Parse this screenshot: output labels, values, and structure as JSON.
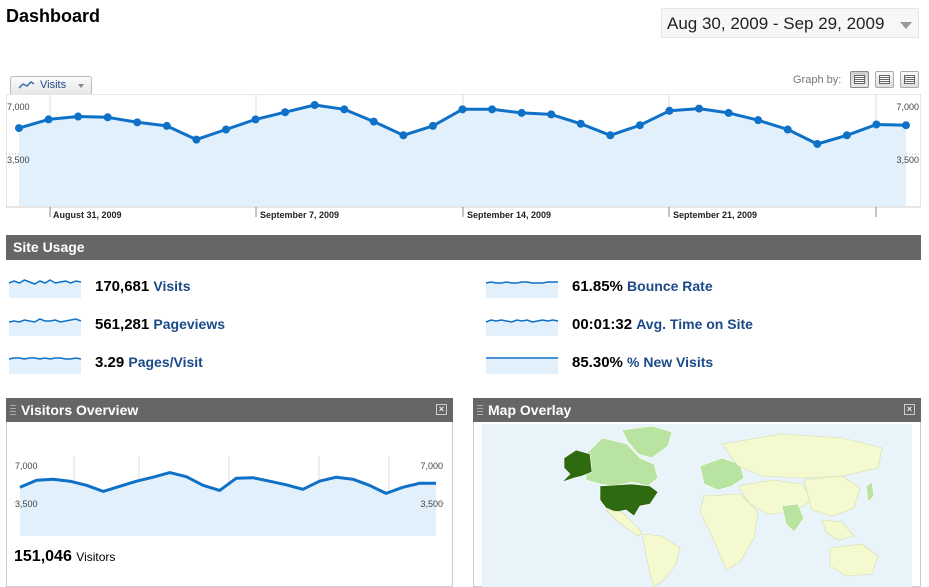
{
  "page": {
    "title": "Dashboard",
    "date_range": "Aug 30, 2009 - Sep 29, 2009"
  },
  "main_graph": {
    "metric_selector": "Visits",
    "graph_by_label": "Graph by:",
    "graph_by_options": [
      "day-icon",
      "week-icon",
      "month-icon"
    ],
    "y_top_label": "7,000",
    "y_mid_label": "3,500",
    "x_labels": [
      "August 31, 2009",
      "September 7, 2009",
      "September 14, 2009",
      "September 21, 2009"
    ],
    "line_color": "#0e71c7",
    "fill_color": "#e2f0fb"
  },
  "chart_data": [
    {
      "type": "area",
      "title": "",
      "x": [
        "2009-08-30",
        "2009-08-31",
        "2009-09-01",
        "2009-09-02",
        "2009-09-03",
        "2009-09-04",
        "2009-09-05",
        "2009-09-06",
        "2009-09-07",
        "2009-09-08",
        "2009-09-09",
        "2009-09-10",
        "2009-09-11",
        "2009-09-12",
        "2009-09-13",
        "2009-09-14",
        "2009-09-15",
        "2009-09-16",
        "2009-09-17",
        "2009-09-18",
        "2009-09-19",
        "2009-09-20",
        "2009-09-21",
        "2009-09-22",
        "2009-09-23",
        "2009-09-24",
        "2009-09-25",
        "2009-09-26",
        "2009-09-27",
        "2009-09-28",
        "2009-09-29"
      ],
      "series": [
        {
          "name": "Visits",
          "values": [
            5400,
            6000,
            6200,
            6150,
            5800,
            5550,
            4600,
            5300,
            6000,
            6500,
            7000,
            6700,
            5850,
            4900,
            5550,
            6700,
            6700,
            6450,
            6350,
            5700,
            4900,
            5600,
            6600,
            6750,
            6450,
            5950,
            5300,
            4300,
            4900,
            5650,
            5600
          ]
        }
      ],
      "xlabel": "",
      "ylabel": "",
      "ylim": [
        0,
        7000
      ],
      "yticks": [
        "3,500",
        "7,000"
      ],
      "grid": true
    },
    {
      "type": "area",
      "title": "",
      "series": [
        {
          "name": "Visitors",
          "values": [
            4800,
            5500,
            5600,
            5400,
            5000,
            4400,
            4900,
            5400,
            5800,
            6250,
            5850,
            5000,
            4500,
            5700,
            5750,
            5400,
            5050,
            4600,
            5400,
            5800,
            5600,
            5000,
            4200,
            4800,
            5200,
            5200
          ]
        }
      ],
      "xlabel": "",
      "ylabel": "",
      "ylim": [
        0,
        7000
      ],
      "yticks": [
        "3,500",
        "7,000"
      ],
      "grid": true
    }
  ],
  "site_usage": {
    "title": "Site Usage",
    "stats": [
      {
        "value": "170,681",
        "label": "Visits"
      },
      {
        "value": "561,281",
        "label": "Pageviews"
      },
      {
        "value": "3.29",
        "label": "Pages/Visit"
      },
      {
        "value": "61.85%",
        "label": "Bounce Rate"
      },
      {
        "value": "00:01:32",
        "label": "Avg. Time on Site"
      },
      {
        "value": "85.30%",
        "label": "% New Visits"
      }
    ]
  },
  "visitors_overview": {
    "title": "Visitors Overview",
    "y_top_label": "7,000",
    "y_mid_label": "3,500",
    "total_value": "151,046",
    "total_label": "Visitors"
  },
  "map_overlay": {
    "title": "Map Overlay",
    "ocean_color": "#e8f4fa",
    "high_color": "#2d6a10",
    "mid_color": "#b8e3a0",
    "low_color": "#f4f9cf"
  }
}
